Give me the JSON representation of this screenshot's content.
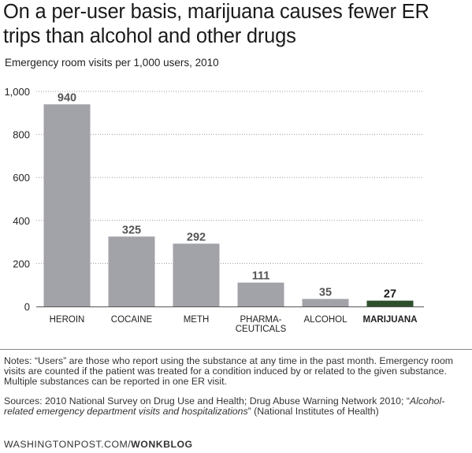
{
  "title": "On a per-user basis, marijuana causes fewer ER trips than alcohol and other drugs",
  "subtitle": "Emergency room visits per 1,000 users, 2010",
  "chart_data": {
    "type": "bar",
    "categories": [
      "HEROIN",
      "COCAINE",
      "METH",
      "PHARMA-\nCEUTICALS",
      "ALCOHOL",
      "MARIJUANA"
    ],
    "values": [
      940,
      325,
      292,
      111,
      35,
      27
    ],
    "value_labels": [
      "940",
      "325",
      "292",
      "111",
      "35",
      "27"
    ],
    "highlight": "MARIJUANA",
    "ylim": [
      0,
      1000
    ],
    "yticks": [
      0,
      200,
      400,
      600,
      800,
      1000
    ],
    "ytick_labels": [
      "0",
      "200",
      "400",
      "600",
      "800",
      "1,000"
    ],
    "grid": true,
    "colors": {
      "bar": "#a2a2a9",
      "highlight": "#2f4f2c",
      "grid": "#999999"
    },
    "xlabel": "",
    "ylabel": ""
  },
  "notes": "Notes: “Users” are those who report using the substance at any time in the past month. Emergency room visits are counted if the patient was treated for a condition induced by or related to the given substance. Multiple substances can be reported in one ER visit.",
  "sources_prefix": "Sources: 2010 National Survey on Drug Use and Health; Drug Abuse Warning Network 2010; “",
  "sources_italic": "Alcohol-related emergency department visits and hospitalizations",
  "sources_suffix": "” (National Institutes of Health)",
  "credit_site": "WASHINGTONPOST.COM/",
  "credit_blog": "WONKBLOG"
}
